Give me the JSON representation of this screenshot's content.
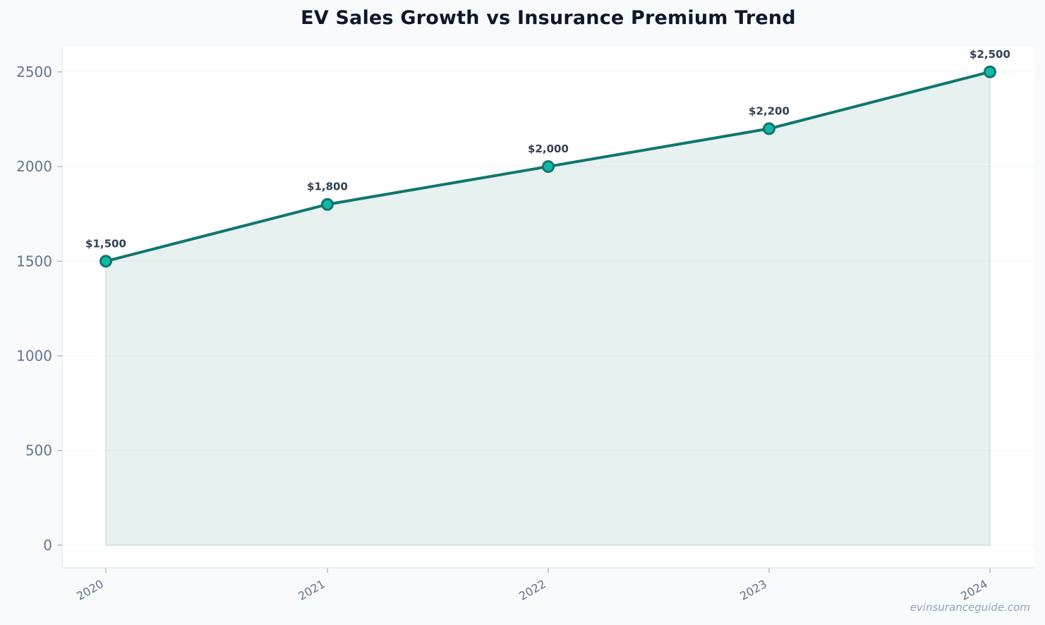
{
  "chart_data": {
    "type": "area",
    "title": "EV Sales Growth vs Insurance Premium Trend",
    "xlabel": "",
    "ylabel": "",
    "x": [
      "2020",
      "2021",
      "2022",
      "2023",
      "2024"
    ],
    "values": [
      1500,
      1800,
      2000,
      2200,
      2500
    ],
    "data_labels": [
      "$1,500",
      "$1,800",
      "$2,000",
      "$2,200",
      "$2,500"
    ],
    "y_ticks": [
      "0",
      "500",
      "1000",
      "1500",
      "2000",
      "2500"
    ],
    "ylim": [
      -120,
      2630
    ],
    "grid": "horizontal",
    "line_color": "#0f766e",
    "marker_color": "#14b8a6",
    "fill_color": "#0f766e"
  },
  "watermark": "evinsuranceguide.com"
}
